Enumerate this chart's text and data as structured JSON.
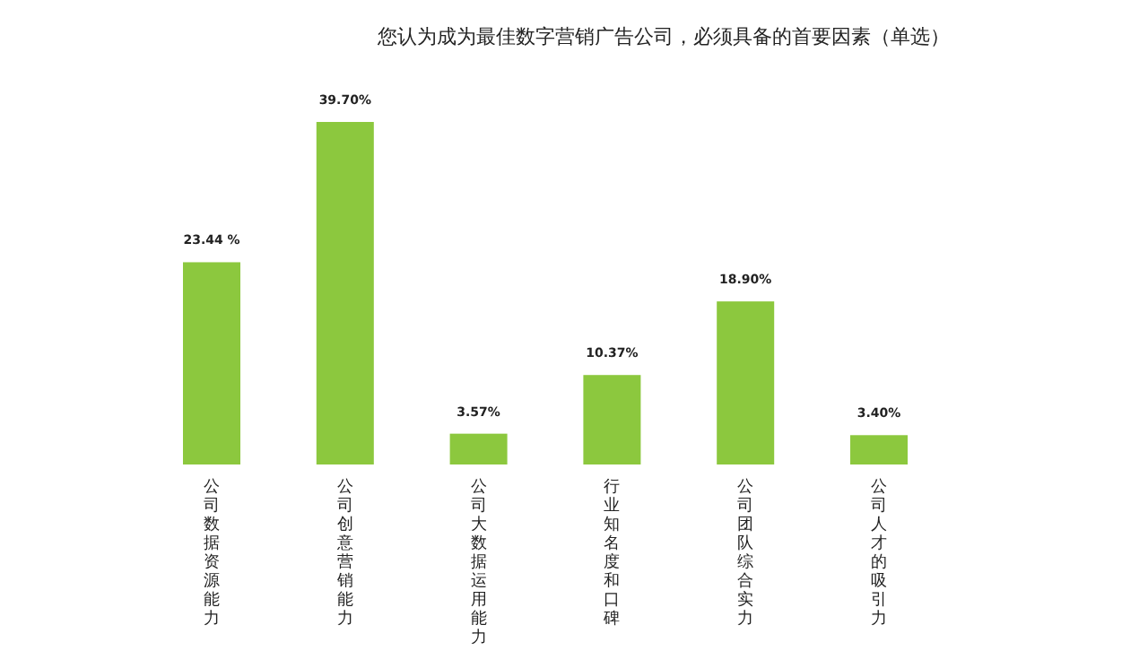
{
  "chart_data": {
    "type": "bar",
    "title": "您认为成为最佳数字营销广告公司，必须具备的首要因素（单选）",
    "categories": [
      "公司数据资源能力",
      "公司创意营销能力",
      "公司大数据运用能力",
      "行业知名度和口碑",
      "公司团队综合实力",
      "公司人才的吸引力"
    ],
    "values": [
      23.44,
      39.7,
      3.57,
      10.37,
      18.9,
      3.4
    ],
    "value_labels": [
      "23.44 %",
      "39.70%",
      "3.57%",
      "10.37%",
      "18.90%",
      "3.40%"
    ],
    "color": "#8cc83e"
  }
}
